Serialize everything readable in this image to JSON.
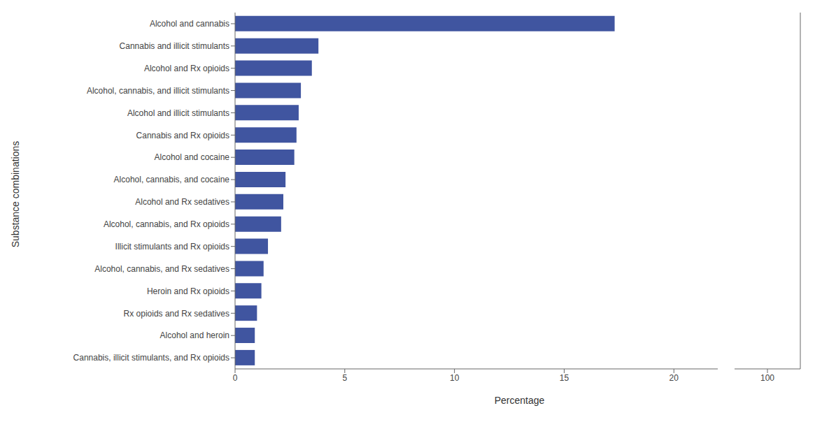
{
  "chart_data": [
    {
      "type": "bar",
      "orientation": "horizontal",
      "categories": [
        "Cannabis, illicit stimulants, and Rx opioids",
        "Alcohol and heroin",
        "Rx opioids and Rx sedatives",
        "Heroin and Rx opioids",
        "Alcohol, cannabis, and Rx sedatives",
        "Illicit stimulants and Rx opioids",
        "Alcohol, cannabis, and Rx opioids",
        "Alcohol and Rx sedatives",
        "Alcohol, cannabis, and cocaine",
        "Alcohol and cocaine",
        "Cannabis and Rx opioids",
        "Alcohol and illicit stimulants",
        "Alcohol, cannabis, and illicit stimulants",
        "Alcohol and Rx opioids",
        "Cannabis and illicit stimulants",
        "Alcohol and cannabis"
      ],
      "values": [
        0.9,
        0.9,
        1.0,
        1.2,
        1.3,
        1.5,
        2.1,
        2.2,
        2.3,
        2.7,
        2.8,
        2.9,
        3.0,
        3.5,
        3.8,
        17.3
      ],
      "color": "#4055a0",
      "xlabel": "Percentage",
      "ylabel": "Substance combinations",
      "xlim": [
        0,
        22
      ],
      "xticks": [
        0,
        5,
        10,
        15,
        20
      ]
    },
    {
      "type": "bar",
      "orientation": "horizontal",
      "xlim": [
        98,
        102
      ],
      "xticks": [
        100
      ],
      "tick_labels": "x"
    }
  ]
}
